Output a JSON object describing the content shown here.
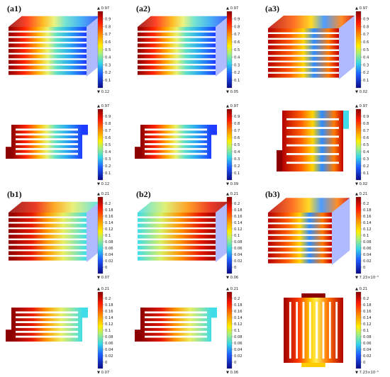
{
  "panels": [
    {
      "id": "a1",
      "label": "(a1)",
      "row": 0,
      "col": 0,
      "view": "iso",
      "cmax": "0.97",
      "cmin": "0.12",
      "ticks": [
        "0.9",
        "0.8",
        "0.7",
        "0.6",
        "0.5",
        "0.4",
        "0.3",
        "0.2",
        "0.1"
      ],
      "gradient": "h-red-blue"
    },
    {
      "id": "a2",
      "label": "(a2)",
      "row": 0,
      "col": 1,
      "view": "iso",
      "cmax": "0.97",
      "cmin": "0.05",
      "ticks": [
        "0.9",
        "0.8",
        "0.7",
        "0.6",
        "0.5",
        "0.4",
        "0.3",
        "0.2",
        "0.1"
      ],
      "gradient": "h-red-blue"
    },
    {
      "id": "a3",
      "label": "(a3)",
      "row": 0,
      "col": 2,
      "view": "iso-wide",
      "cmax": "0.97",
      "cmin": "0.02",
      "ticks": [
        "0.9",
        "0.8",
        "0.7",
        "0.6",
        "0.5",
        "0.4",
        "0.3",
        "0.2",
        "0.1"
      ],
      "gradient": "h-red-mixed"
    },
    {
      "id": "a1t",
      "label": "",
      "row": 1,
      "col": 0,
      "view": "plan",
      "cmax": "0.97",
      "cmin": "0.12",
      "ticks": [
        "0.9",
        "0.8",
        "0.7",
        "0.6",
        "0.5",
        "0.4",
        "0.3",
        "0.2",
        "0.1"
      ],
      "gradient": "h-red-blue"
    },
    {
      "id": "a2t",
      "label": "",
      "row": 1,
      "col": 1,
      "view": "plan",
      "cmax": "0.97",
      "cmin": "0.09",
      "ticks": [
        "0.9",
        "0.8",
        "0.7",
        "0.6",
        "0.5",
        "0.4",
        "0.3",
        "0.2",
        "0.1"
      ],
      "gradient": "h-red-blue"
    },
    {
      "id": "a3t",
      "label": "",
      "row": 1,
      "col": 2,
      "view": "plan-square",
      "cmax": "0.97",
      "cmin": "0.02",
      "ticks": [
        "0.9",
        "0.8",
        "0.7",
        "0.6",
        "0.5",
        "0.4",
        "0.3",
        "0.2",
        "0.1"
      ],
      "gradient": "h-red-mixed"
    },
    {
      "id": "b1",
      "label": "(b1)",
      "row": 2,
      "col": 0,
      "view": "iso",
      "cmax": "0.21",
      "cmin": "0.07",
      "ticks": [
        "0.2",
        "0.18",
        "0.16",
        "0.14",
        "0.12",
        "0.1",
        "0.08",
        "0.06",
        "0.04",
        "0.02",
        "0"
      ],
      "gradient": "h-red-cyan"
    },
    {
      "id": "b2",
      "label": "(b2)",
      "row": 2,
      "col": 1,
      "view": "iso",
      "cmax": "0.21",
      "cmin": "0.06",
      "ticks": [
        "0.2",
        "0.18",
        "0.16",
        "0.14",
        "0.12",
        "0.1",
        "0.08",
        "0.06",
        "0.04",
        "0.02",
        "0"
      ],
      "gradient": "h-cyan-red"
    },
    {
      "id": "b3",
      "label": "(b3)",
      "row": 2,
      "col": 2,
      "view": "iso-tall",
      "cmax": "0.21",
      "cmin": "7.23×10⁻⁵",
      "ticks": [
        "0.2",
        "0.18",
        "0.16",
        "0.14",
        "0.12",
        "0.1",
        "0.08",
        "0.06",
        "0.04",
        "0.02",
        "0"
      ],
      "gradient": "h-red-mixed"
    },
    {
      "id": "b1t",
      "label": "",
      "row": 3,
      "col": 0,
      "view": "plan",
      "cmax": "0.21",
      "cmin": "0.07",
      "ticks": [
        "0.2",
        "0.18",
        "0.16",
        "0.14",
        "0.12",
        "0.1",
        "0.08",
        "0.06",
        "0.04",
        "0.02",
        "0"
      ],
      "gradient": "h-red-cyan"
    },
    {
      "id": "b2t",
      "label": "",
      "row": 3,
      "col": 1,
      "view": "plan",
      "cmax": "0.21",
      "cmin": "0.06",
      "ticks": [
        "0.2",
        "0.18",
        "0.16",
        "0.14",
        "0.12",
        "0.1",
        "0.08",
        "0.06",
        "0.04",
        "0.02",
        "0"
      ],
      "gradient": "h-red-cyan"
    },
    {
      "id": "b3t",
      "label": "",
      "row": 3,
      "col": 2,
      "view": "plan-vertical",
      "cmax": "0.21",
      "cmin": "7.23×10⁻⁵",
      "ticks": [
        "0.2",
        "0.18",
        "0.16",
        "0.14",
        "0.12",
        "0.1",
        "0.08",
        "0.06",
        "0.04",
        "0.02",
        "0"
      ],
      "gradient": "v-red-blue"
    }
  ],
  "colors": {
    "red": "#b30000",
    "orange": "#ff7a00",
    "yellow": "#ffe600",
    "green": "#7fe07f",
    "cyan": "#27d3e6",
    "blue": "#1f5fff",
    "navy": "#0b0b8c"
  }
}
